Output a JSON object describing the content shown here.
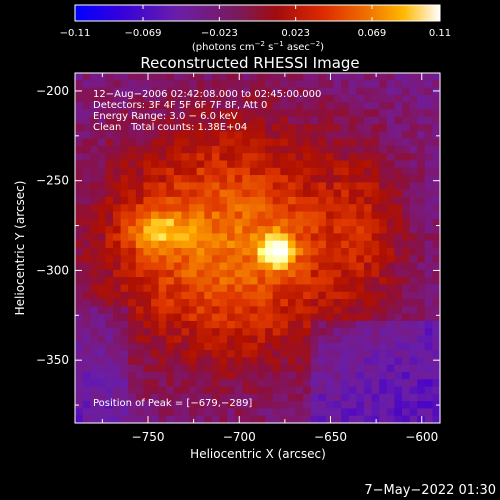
{
  "chart_data": {
    "type": "heatmap",
    "title": "Reconstructed RHESSI Image",
    "xlabel": "Heliocentric X (arcsec)",
    "ylabel": "Heliocentric Y (arcsec)",
    "xlim": [
      -790,
      -590
    ],
    "ylim": [
      -385,
      -190
    ],
    "x_ticks": [
      {
        "value": -750,
        "label": "−750"
      },
      {
        "value": -700,
        "label": "−700"
      },
      {
        "value": -650,
        "label": "−650"
      },
      {
        "value": -600,
        "label": "−600"
      }
    ],
    "y_ticks": [
      {
        "value": -200,
        "label": "−200"
      },
      {
        "value": -250,
        "label": "−250"
      },
      {
        "value": -300,
        "label": "−300"
      },
      {
        "value": -350,
        "label": "−350"
      }
    ],
    "colorbar": {
      "min": -0.11,
      "max": 0.11,
      "tick_labels": [
        "−0.11",
        "−0.069",
        "−0.023",
        "0.023",
        "0.069",
        "0.11"
      ],
      "tick_values": [
        -0.11,
        -0.069,
        -0.023,
        0.023,
        0.069,
        0.11
      ],
      "units_prefix": "(photons cm",
      "units_exp1": "−2",
      "units_mid": " s",
      "units_exp2": "−1",
      "units_mid2": " asec",
      "units_exp3": "−2",
      "units_suffix": ")"
    },
    "annotations": {
      "line1": "12−Aug−2006 02:42:08.000 to 02:45:00.000",
      "line2": "Detectors: 3F 4F 5F 6F 7F 8F, Att 0",
      "line3": "Energy Range: 3.0 − 6.0 keV",
      "line4_a": "Clean",
      "line4_b": "Total counts: 1.38E+04",
      "peak": "Position of Peak = [−679,−289]"
    },
    "peak_position": [
      -679,
      -289
    ],
    "colormap": [
      "#0000ff",
      "#4400cc",
      "#6a1ea8",
      "#7a1a80",
      "#8a1040",
      "#b01000",
      "#e03800",
      "#f07000",
      "#ffb000",
      "#ffff80",
      "#ffffff"
    ]
  },
  "footer": {
    "timestamp": "7−May−2022 01:30"
  }
}
